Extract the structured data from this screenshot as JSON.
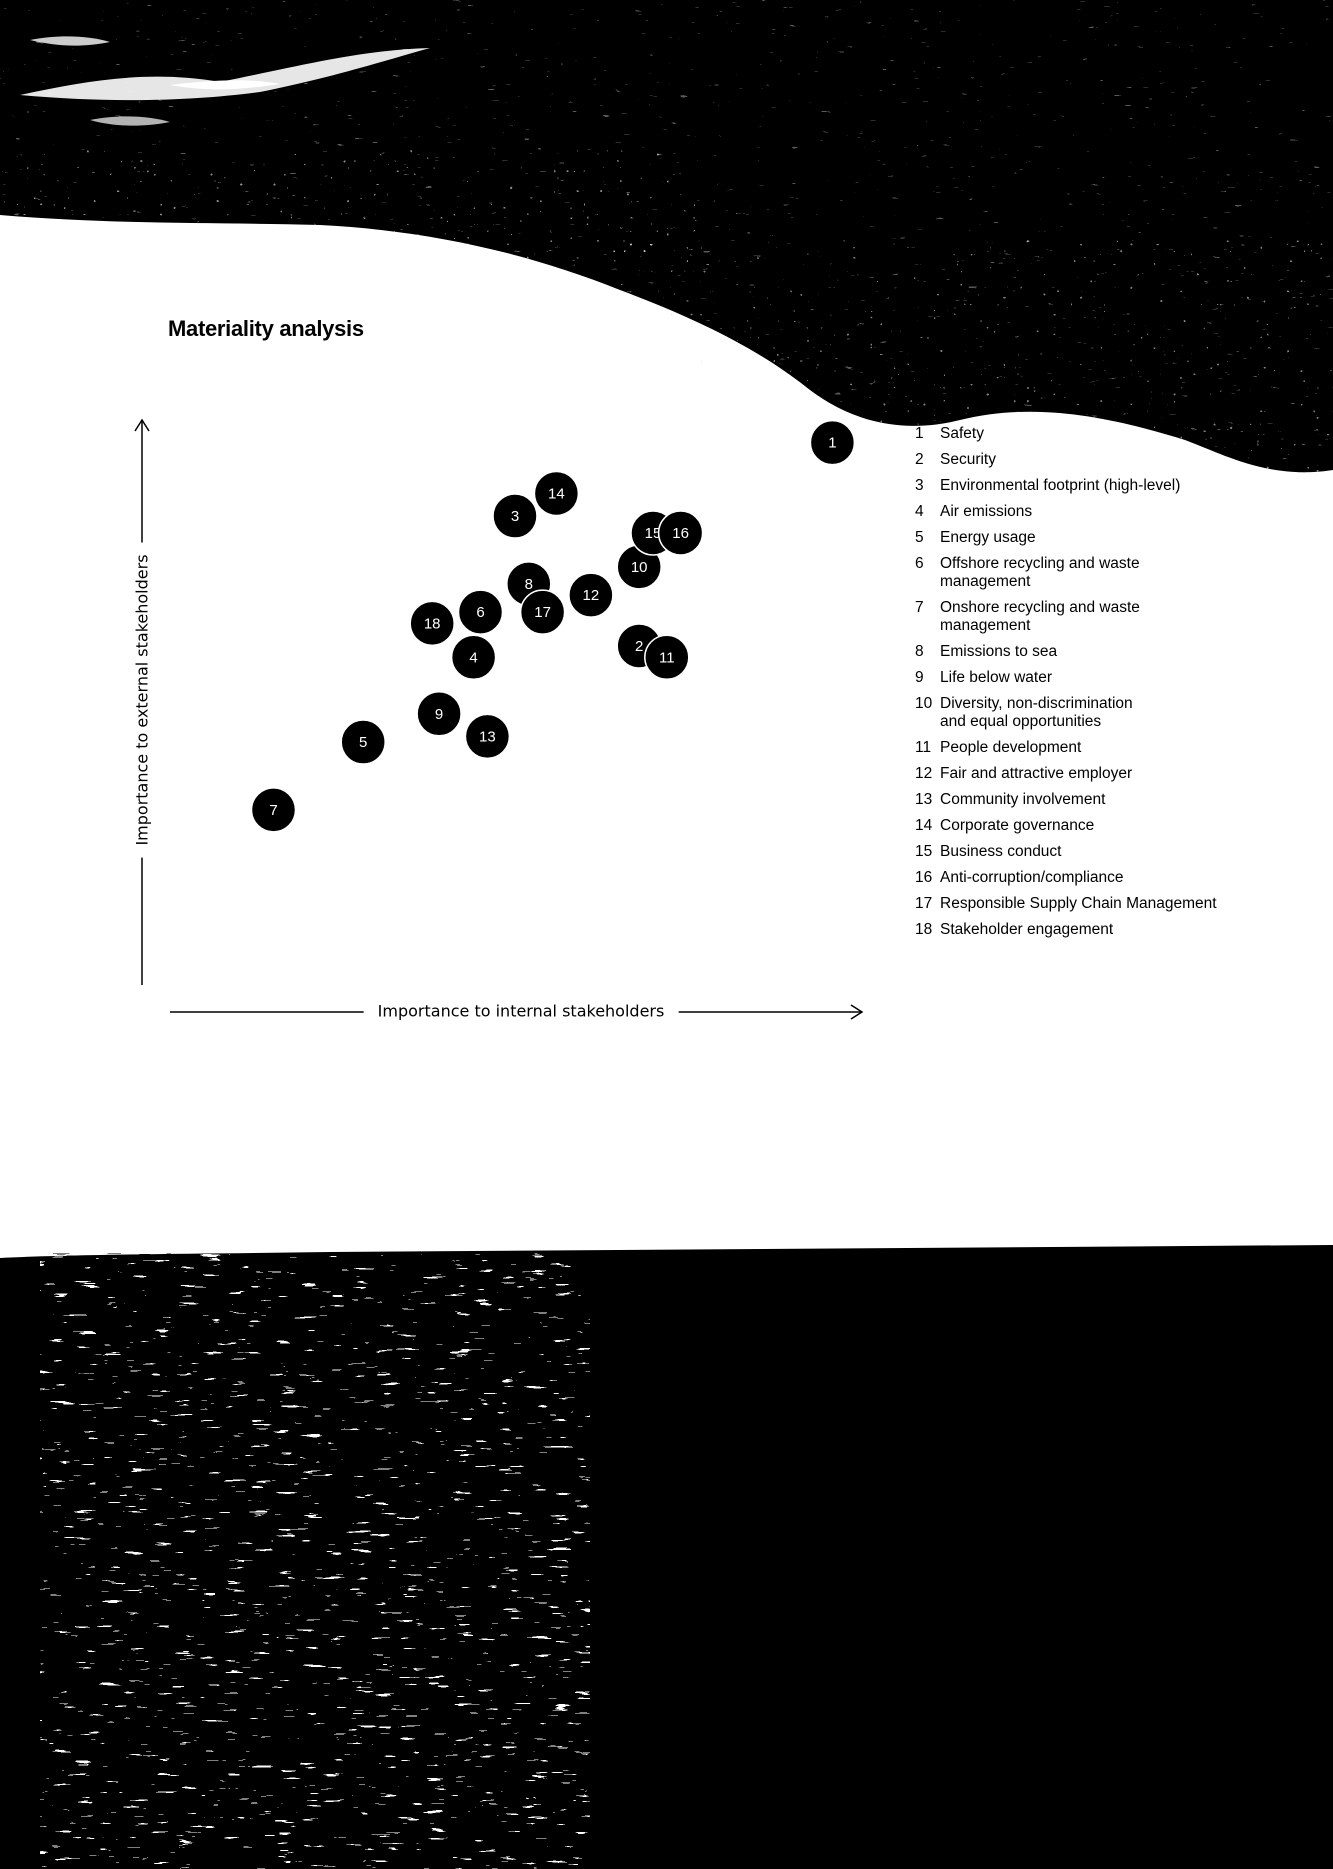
{
  "background": {
    "sky_color": "#000000",
    "mist_color": "#ffffff",
    "sea_color": "#000000"
  },
  "chart_data": {
    "type": "scatter",
    "title": "Materiality analysis",
    "xlabel": "Importance to internal stakeholders",
    "ylabel": "Importance to external stakeholders",
    "xlim": [
      0,
      100
    ],
    "ylim": [
      0,
      100
    ],
    "grid": false,
    "legend_position": "right",
    "marker_color": "#000000",
    "marker_label_color": "#ffffff",
    "points": [
      {
        "id": "1",
        "label": "Safety",
        "x": 96,
        "y": 96
      },
      {
        "id": "2",
        "label": "Security",
        "x": 68,
        "y": 60
      },
      {
        "id": "3",
        "label": "Environmental footprint (high-level)",
        "x": 50,
        "y": 83
      },
      {
        "id": "4",
        "label": "Air emissions",
        "x": 44,
        "y": 58
      },
      {
        "id": "5",
        "label": "Energy usage",
        "x": 28,
        "y": 43
      },
      {
        "id": "6",
        "label": "Offshore recycling and waste management",
        "x": 45,
        "y": 66
      },
      {
        "id": "7",
        "label": "Onshore recycling and waste management",
        "x": 15,
        "y": 31
      },
      {
        "id": "8",
        "label": "Emissions to sea",
        "x": 52,
        "y": 71
      },
      {
        "id": "9",
        "label": "Life below water",
        "x": 39,
        "y": 48
      },
      {
        "id": "10",
        "label": "Diversity, non-discrimination and equal opportunities",
        "x": 68,
        "y": 74
      },
      {
        "id": "11",
        "label": "People development",
        "x": 72,
        "y": 58
      },
      {
        "id": "12",
        "label": "Fair and attractive employer",
        "x": 61,
        "y": 69
      },
      {
        "id": "13",
        "label": "Community involvement",
        "x": 46,
        "y": 44
      },
      {
        "id": "14",
        "label": "Corporate governance",
        "x": 56,
        "y": 87
      },
      {
        "id": "15",
        "label": "Business conduct",
        "x": 70,
        "y": 80
      },
      {
        "id": "16",
        "label": "Anti-corruption/compliance",
        "x": 74,
        "y": 80
      },
      {
        "id": "17",
        "label": "Responsible Supply Chain Management",
        "x": 54,
        "y": 66
      },
      {
        "id": "18",
        "label": "Stakeholder engagement",
        "x": 38,
        "y": 64
      }
    ]
  }
}
